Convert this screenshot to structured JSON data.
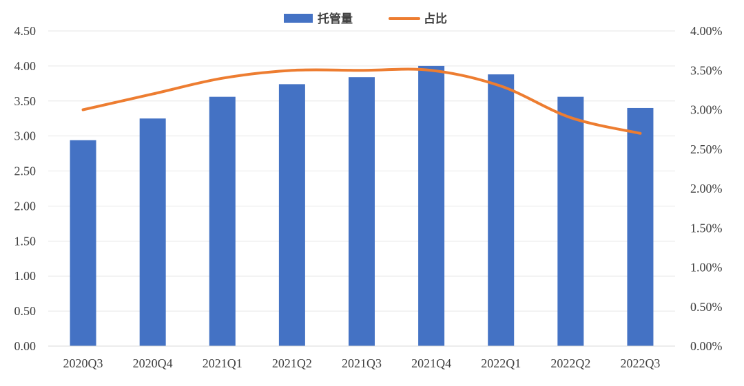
{
  "chart_data": {
    "type": "bar",
    "categories": [
      "2020Q3",
      "2020Q4",
      "2021Q1",
      "2021Q2",
      "2021Q3",
      "2021Q4",
      "2022Q1",
      "2022Q2",
      "2022Q3"
    ],
    "series": [
      {
        "name": "托管量",
        "type": "bar",
        "axis": "left",
        "color": "#4472C4",
        "values": [
          2.94,
          3.25,
          3.56,
          3.74,
          3.84,
          4.0,
          3.88,
          3.56,
          3.4
        ]
      },
      {
        "name": "占比",
        "type": "line",
        "axis": "right",
        "color": "#ED7D31",
        "smooth": true,
        "values": [
          3.0,
          3.2,
          3.4,
          3.5,
          3.5,
          3.5,
          3.3,
          2.9,
          2.7
        ]
      }
    ],
    "y_left": {
      "ylim": [
        0,
        4.5
      ],
      "ticks": [
        "0.00",
        "0.50",
        "1.00",
        "1.50",
        "2.00",
        "2.50",
        "3.00",
        "3.50",
        "4.00",
        "4.50"
      ]
    },
    "y_right": {
      "ylim": [
        0,
        4.0
      ],
      "unit": "%",
      "ticks": [
        "0.00%",
        "0.50%",
        "1.00%",
        "1.50%",
        "2.00%",
        "2.50%",
        "3.00%",
        "3.50%",
        "4.00%"
      ]
    },
    "grid": true,
    "legend_position": "top-center",
    "title": "",
    "xlabel": "",
    "ylabel": ""
  }
}
